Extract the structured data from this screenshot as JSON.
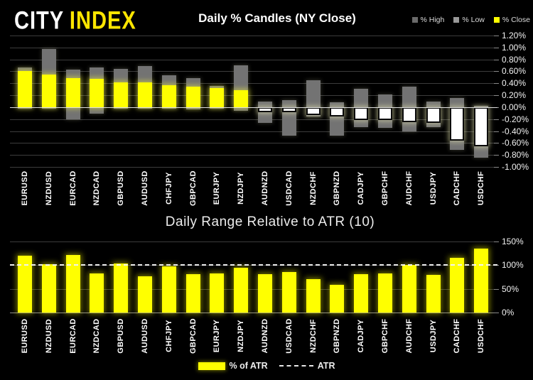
{
  "logo": {
    "city": "CITY",
    "index": "INDEX"
  },
  "chart_data": [
    {
      "type": "bar",
      "subtype": "daily-percent-candles",
      "title": "Daily % Candles (NY Close)",
      "legend_position": "top-right",
      "categories": [
        "EURUSD",
        "NZDUSD",
        "EURCAD",
        "NZDCAD",
        "GBPUSD",
        "AUDUSD",
        "CHFJPY",
        "GBPCAD",
        "EURJPY",
        "NZDJPY",
        "AUDNZD",
        "USDCAD",
        "NZDCHF",
        "GBPNZD",
        "CADJPY",
        "GBPCHF",
        "AUDCHF",
        "USDJPY",
        "CADCHF",
        "USDCHF"
      ],
      "series": [
        {
          "name": "% High",
          "values": [
            0.66,
            0.97,
            0.63,
            0.67,
            0.64,
            0.69,
            0.53,
            0.49,
            0.36,
            0.7,
            0.1,
            0.12,
            0.45,
            0.08,
            0.31,
            0.21,
            0.34,
            0.1,
            0.15,
            0.02
          ]
        },
        {
          "name": "% Low",
          "values": [
            -0.02,
            -0.02,
            -0.2,
            -0.11,
            -0.02,
            -0.02,
            -0.03,
            -0.04,
            -0.02,
            -0.06,
            -0.26,
            -0.48,
            -0.16,
            -0.48,
            -0.33,
            -0.35,
            -0.41,
            -0.33,
            -0.72,
            -0.85
          ]
        },
        {
          "name": "% Close",
          "values": [
            0.61,
            0.55,
            0.49,
            0.47,
            0.41,
            0.41,
            0.37,
            0.34,
            0.32,
            0.28,
            -0.08,
            -0.09,
            -0.13,
            -0.15,
            -0.21,
            -0.22,
            -0.25,
            -0.26,
            -0.56,
            -0.66
          ]
        }
      ],
      "ylim": [
        -1.0,
        1.2
      ],
      "yticks": [
        "1.20%",
        "1.00%",
        "0.80%",
        "0.60%",
        "0.40%",
        "0.20%",
        "0.00%",
        "-0.20%",
        "-0.40%",
        "-0.60%",
        "-0.80%",
        "-1.00%"
      ],
      "grid": true,
      "colors": {
        "high_swatch": "#6a6a6a",
        "low_swatch": "#999999",
        "close_up": "#ffff00",
        "close_down": "#ffffff"
      }
    },
    {
      "type": "bar",
      "title": "Daily Range Relative to ATR (10)",
      "legend_position": "bottom-center",
      "categories": [
        "EURUSD",
        "NZDUSD",
        "EURCAD",
        "NZDCAD",
        "GBPUSD",
        "AUDUSD",
        "CHFJPY",
        "GBPCAD",
        "EURJPY",
        "NZDJPY",
        "AUDNZD",
        "USDCAD",
        "NZDCHF",
        "GBPNZD",
        "CADJPY",
        "GBPCHF",
        "AUDCHF",
        "USDJPY",
        "CADCHF",
        "USDCHF"
      ],
      "series": [
        {
          "name": "% of ATR",
          "values": [
            120,
            102,
            122,
            82,
            103,
            77,
            97,
            81,
            83,
            94,
            81,
            86,
            70,
            59,
            81,
            83,
            100,
            80,
            115,
            135
          ]
        }
      ],
      "reference_line": {
        "name": "ATR",
        "value": 100
      },
      "ylim": [
        0,
        150
      ],
      "yticks": [
        "150%",
        "100%",
        "50%",
        "0%"
      ],
      "grid": true,
      "colors": {
        "bar": "#ffff00",
        "atr_line": "#f2f2f2"
      }
    }
  ]
}
